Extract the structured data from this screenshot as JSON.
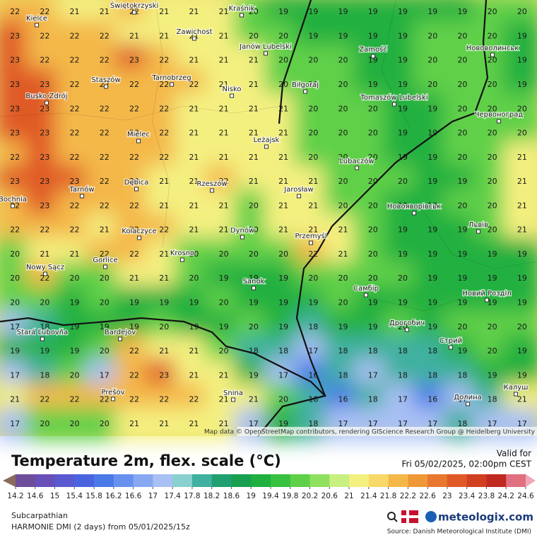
{
  "map": {
    "grid": [
      [
        22,
        22,
        21,
        21,
        22,
        21,
        21,
        21,
        20,
        19,
        19,
        19,
        19,
        19,
        19,
        19,
        20,
        20
      ],
      [
        23,
        22,
        22,
        22,
        21,
        21,
        21,
        21,
        20,
        20,
        19,
        19,
        19,
        19,
        20,
        20,
        20,
        19
      ],
      [
        23,
        22,
        22,
        22,
        23,
        22,
        21,
        21,
        21,
        20,
        20,
        20,
        19,
        19,
        20,
        20,
        20,
        19
      ],
      [
        23,
        23,
        22,
        22,
        22,
        22,
        22,
        21,
        21,
        20,
        20,
        20,
        19,
        19,
        20,
        20,
        20,
        19
      ],
      [
        23,
        23,
        22,
        22,
        22,
        22,
        21,
        21,
        21,
        21,
        20,
        20,
        20,
        19,
        19,
        20,
        20,
        20
      ],
      [
        23,
        23,
        22,
        22,
        22,
        22,
        21,
        21,
        21,
        21,
        20,
        20,
        20,
        19,
        19,
        20,
        20,
        20
      ],
      [
        22,
        23,
        22,
        22,
        22,
        22,
        21,
        21,
        21,
        21,
        20,
        20,
        20,
        19,
        19,
        20,
        20,
        21
      ],
      [
        23,
        23,
        23,
        22,
        22,
        21,
        21,
        22,
        21,
        21,
        21,
        20,
        20,
        20,
        19,
        19,
        20,
        21
      ],
      [
        22,
        23,
        22,
        22,
        22,
        21,
        21,
        21,
        20,
        21,
        21,
        20,
        20,
        19,
        19,
        20,
        20,
        21
      ],
      [
        22,
        22,
        22,
        21,
        22,
        22,
        21,
        21,
        20,
        21,
        21,
        21,
        20,
        19,
        19,
        19,
        20,
        21
      ],
      [
        20,
        21,
        21,
        22,
        22,
        21,
        20,
        20,
        20,
        20,
        22,
        21,
        20,
        19,
        19,
        19,
        19,
        19
      ],
      [
        20,
        22,
        20,
        20,
        21,
        21,
        20,
        19,
        19,
        19,
        20,
        20,
        20,
        20,
        19,
        19,
        19,
        19
      ],
      [
        20,
        20,
        19,
        20,
        19,
        19,
        19,
        20,
        19,
        19,
        19,
        20,
        19,
        19,
        19,
        19,
        19,
        19
      ],
      [
        17,
        18,
        19,
        19,
        19,
        20,
        19,
        19,
        20,
        19,
        18,
        19,
        19,
        20,
        19,
        20,
        20,
        20
      ],
      [
        19,
        19,
        19,
        20,
        22,
        21,
        21,
        20,
        18,
        18,
        17,
        18,
        18,
        18,
        18,
        19,
        20,
        19
      ],
      [
        17,
        18,
        20,
        17,
        22,
        23,
        21,
        21,
        19,
        17,
        16,
        18,
        17,
        18,
        18,
        18,
        19,
        19
      ],
      [
        21,
        22,
        22,
        22,
        22,
        22,
        22,
        21,
        21,
        20,
        18,
        16,
        18,
        17,
        16,
        17,
        18,
        21
      ],
      [
        17,
        20,
        20,
        20,
        21,
        21,
        21,
        21,
        17,
        19,
        18,
        17,
        17,
        17,
        17,
        18,
        17,
        17
      ]
    ],
    "cities": [
      "Kielce",
      "Świętokrzyski",
      "Kraśnik",
      "Zawichost",
      "Janów Lubelski",
      "Zamość",
      "Нововолинськ",
      "Staszów",
      "Tarnobrzeg",
      "Busko Zdrój",
      "Nisko",
      "Biłgoraj",
      "Tomaszów Lubelski",
      "Червоноград",
      "Mielec",
      "Leżajsk",
      "Lubaczów",
      "Tarnów",
      "Dębica",
      "Rzeszów",
      "Jarosław",
      "Bochnia",
      "Новояворівськ",
      "Dynów",
      "Львів",
      "Kolaczyce",
      "Przemyśl",
      "Krosno",
      "Gorlice",
      "Nowy Sącz",
      "Sanok",
      "Самбір",
      "Новий Розділ",
      "Stará Ľubovňa",
      "Bardejov",
      "Дрогобич",
      "Стрий",
      "Prešov",
      "Snina",
      "Долина",
      "Калуш"
    ],
    "attribution": "Map data © OpenStreetMap contributors, rendering GIScience Research Group @ Heidelberg University"
  },
  "header": {
    "title": "Temperature 2m, flex. scale (°C)",
    "valid_label": "Valid for",
    "valid_time": "Fri 05/02/2025, 02:00pm CEST"
  },
  "legend": {
    "ticks": [
      14.2,
      14.6,
      15,
      15.4,
      15.8,
      16.2,
      16.6,
      17,
      17.4,
      17.8,
      18.2,
      18.6,
      19,
      19.4,
      19.8,
      20.2,
      20.6,
      21,
      21.4,
      21.8,
      22.2,
      22.6,
      23,
      23.4,
      23.8,
      24.2,
      24.6
    ],
    "colors": [
      "#8a6a5a",
      "#6e4e9a",
      "#6850b8",
      "#5a5ad0",
      "#4a64e0",
      "#4a7ae8",
      "#6890ee",
      "#88a8f2",
      "#a8c0f4",
      "#8ad0d0",
      "#40b0a0",
      "#20a070",
      "#18a050",
      "#20b040",
      "#38c040",
      "#60d048",
      "#90e060",
      "#c8f080",
      "#f4f080",
      "#f8d868",
      "#f4b848",
      "#ee9838",
      "#e87830",
      "#e05a28",
      "#d04020",
      "#c02a20",
      "#e07080",
      "#f0a8b8"
    ]
  },
  "footer": {
    "region": "Subcarpathian",
    "model": "HARMONIE DMI (2 days)  from  05/01/2025/15z",
    "brand": "meteologix.com",
    "source": "Source: Danish Meteorological Institute (DMI)"
  }
}
